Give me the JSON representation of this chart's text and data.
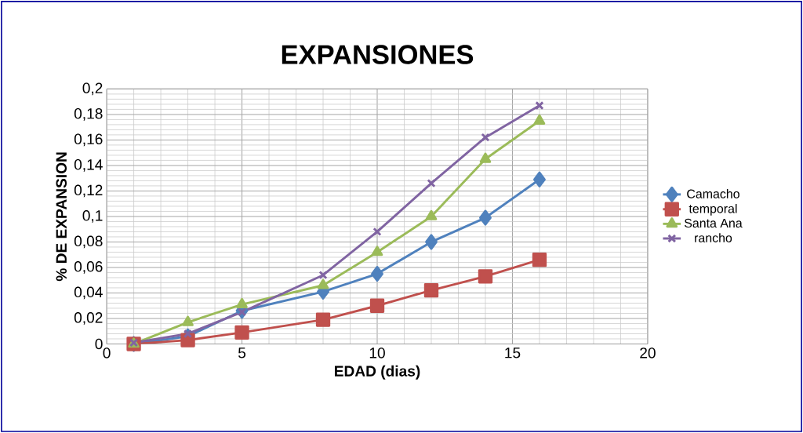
{
  "chart_data": {
    "type": "line",
    "title": "EXPANSIONES",
    "xlabel": "EDAD (dias)",
    "ylabel": "% DE EXPANSION",
    "x": [
      1,
      3,
      5,
      8,
      10,
      12,
      14,
      16
    ],
    "series": [
      {
        "name": "Camacho",
        "color": "#4f81bd",
        "marker": "diamond",
        "values": [
          0,
          0.006,
          0.026,
          0.041,
          0.055,
          0.08,
          0.099,
          0.129
        ]
      },
      {
        "name": "temporal",
        "color": "#c0504d",
        "marker": "square",
        "values": [
          0,
          0.003,
          0.009,
          0.019,
          0.03,
          0.042,
          0.053,
          0.066
        ]
      },
      {
        "name": "Santa Ana",
        "color": "#9bbb59",
        "marker": "triangle",
        "values": [
          0,
          0.017,
          0.031,
          0.046,
          0.072,
          0.1,
          0.145,
          0.175
        ]
      },
      {
        "name": "rancho",
        "color": "#8064a2",
        "marker": "cross",
        "values": [
          0.001,
          0.008,
          0.025,
          0.054,
          0.088,
          0.126,
          0.162,
          0.187
        ]
      }
    ],
    "xlim": [
      0,
      20
    ],
    "xticks": [
      0,
      5,
      10,
      15,
      20
    ],
    "ylim": [
      0,
      0.2
    ],
    "yticks": [
      {
        "value": 0,
        "label": "0"
      },
      {
        "value": 0.02,
        "label": "0,02"
      },
      {
        "value": 0.04,
        "label": "0,04"
      },
      {
        "value": 0.06,
        "label": "0,06"
      },
      {
        "value": 0.08,
        "label": "0,08"
      },
      {
        "value": 0.1,
        "label": "0,1"
      },
      {
        "value": 0.12,
        "label": "0,12"
      },
      {
        "value": 0.14,
        "label": "0,14"
      },
      {
        "value": 0.16,
        "label": "0,16"
      },
      {
        "value": 0.18,
        "label": "0,18"
      },
      {
        "value": 0.2,
        "label": "0,2"
      }
    ],
    "grid": true,
    "legend": "right"
  }
}
